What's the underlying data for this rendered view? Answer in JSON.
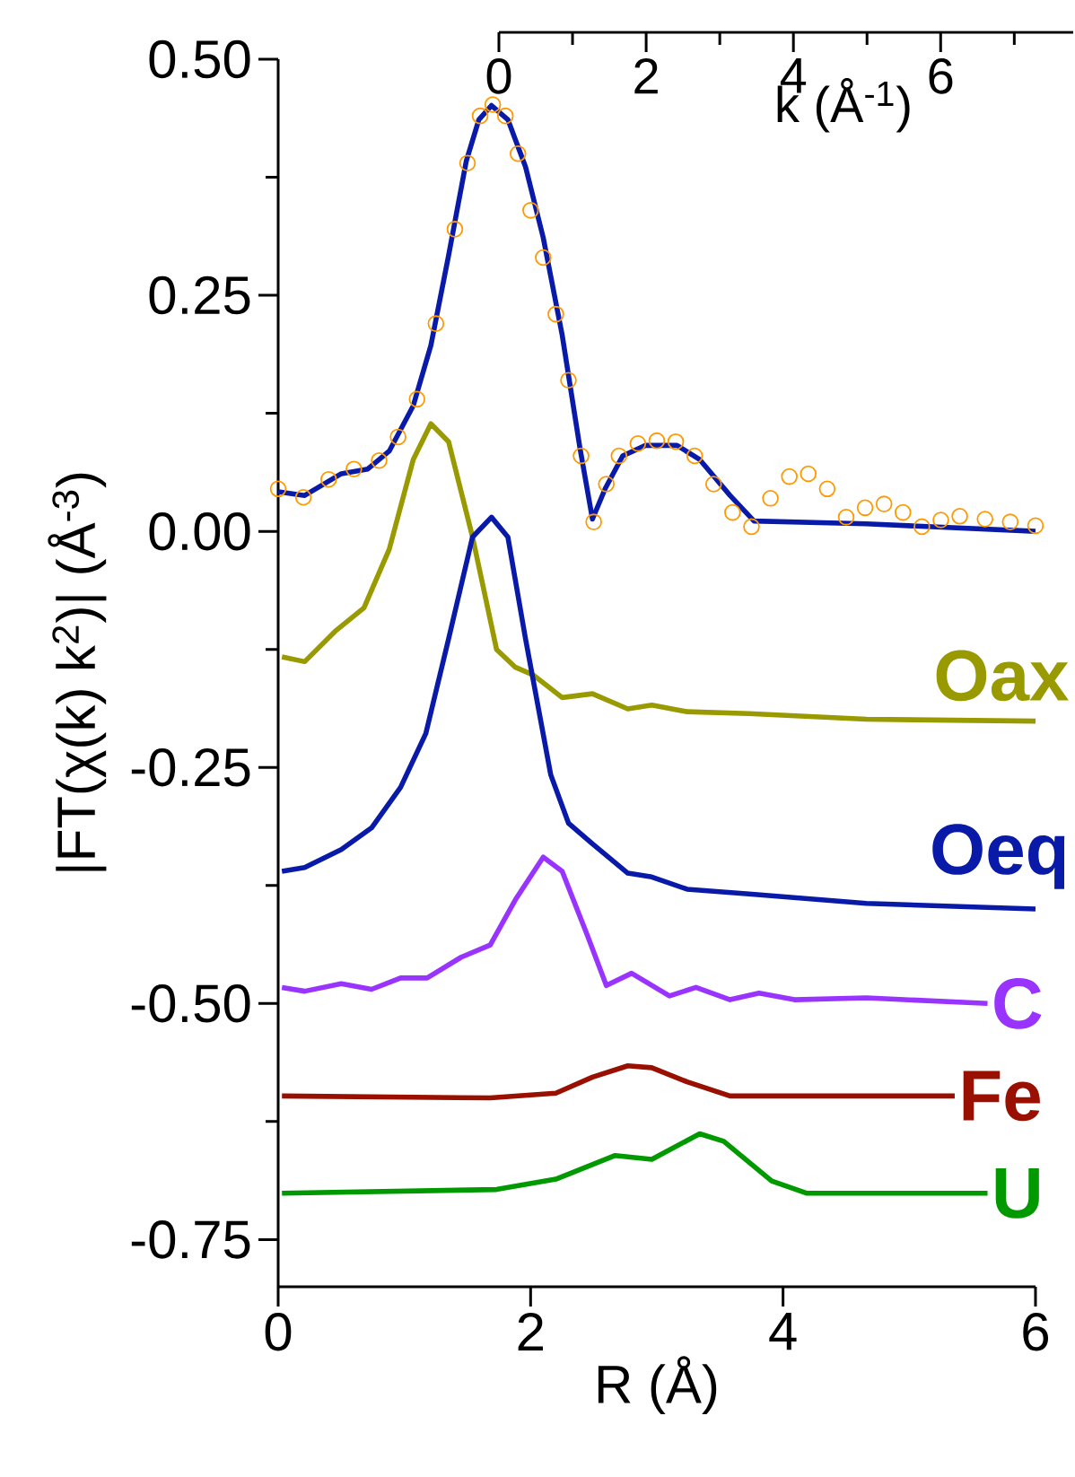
{
  "chart_data": {
    "type": "line",
    "xlabel": "R (Å)",
    "ylabel": "|FT(χ(k) k$^{2}$)| (Å$^{-3}$)",
    "x2label": "k (Å$^{-1}$)",
    "xlim": [
      0,
      6
    ],
    "xticks": [
      0,
      2,
      4,
      6
    ],
    "ylim": [
      -0.8,
      0.5
    ],
    "yticks": [
      {
        "value": 0.5,
        "label": "0.50"
      },
      {
        "value": 0.375,
        "label": null
      },
      {
        "value": 0.25,
        "label": "0.25"
      },
      {
        "value": 0.125,
        "label": null
      },
      {
        "value": 0,
        "label": "0.00"
      },
      {
        "value": -0.125,
        "label": null
      },
      {
        "value": -0.25,
        "label": "-0.25"
      },
      {
        "value": -0.375,
        "label": null
      },
      {
        "value": -0.5,
        "label": "-0.50"
      },
      {
        "value": -0.625,
        "label": null
      },
      {
        "value": -0.75,
        "label": "-0.75"
      }
    ],
    "x2lim": [
      0,
      7.8
    ],
    "x2ticks": [
      0,
      {
        "value": 1,
        "label": null
      },
      2,
      {
        "value": 3,
        "label": null
      },
      4,
      {
        "value": 5,
        "label": null
      },
      6,
      {
        "value": 7,
        "label": null
      }
    ],
    "series": [
      {
        "type": "scatter",
        "marker": "circle",
        "color": "#ff9900",
        "x": [
          0,
          0.2,
          0.4,
          0.6,
          0.8,
          0.95,
          1.1,
          1.25,
          1.4,
          1.5,
          1.6,
          1.7,
          1.8,
          1.9,
          2.0,
          2.1,
          2.2,
          2.3,
          2.4,
          2.5,
          2.6,
          2.7,
          2.85,
          3.0,
          3.15,
          3.3,
          3.45,
          3.6,
          3.75,
          3.9,
          4.05,
          4.2,
          4.35,
          4.5,
          4.65,
          4.8,
          4.95,
          5.1,
          5.25,
          5.4,
          5.6,
          5.8,
          6.0
        ],
        "values": [
          0.045,
          0.036,
          0.055,
          0.066,
          0.075,
          0.1,
          0.14,
          0.22,
          0.32,
          0.39,
          0.44,
          0.452,
          0.44,
          0.4,
          0.34,
          0.29,
          0.23,
          0.16,
          0.08,
          0.01,
          0.05,
          0.08,
          0.093,
          0.096,
          0.095,
          0.08,
          0.05,
          0.02,
          0.005,
          0.035,
          0.058,
          0.061,
          0.045,
          0.015,
          0.025,
          0.029,
          0.02,
          0.005,
          0.012,
          0.016,
          0.013,
          0.01,
          0.006
        ]
      },
      {
        "color": "#0a1aa8",
        "x": [
          0,
          0.21,
          0.5,
          0.71,
          0.88,
          1.07,
          1.21,
          1.35,
          1.49,
          1.59,
          1.69,
          1.82,
          1.96,
          2.1,
          2.25,
          2.39,
          2.49,
          2.59,
          2.73,
          2.91,
          3.16,
          3.34,
          3.58,
          3.77,
          4.66,
          6.0
        ],
        "values": [
          0.042,
          0.038,
          0.061,
          0.066,
          0.085,
          0.133,
          0.197,
          0.292,
          0.392,
          0.436,
          0.451,
          0.436,
          0.386,
          0.311,
          0.208,
          0.089,
          0.013,
          0.045,
          0.08,
          0.091,
          0.091,
          0.076,
          0.038,
          0.011,
          0.008,
          0.0
        ]
      },
      {
        "name": "Oax",
        "color": "#999900",
        "x": [
          0.03,
          0.21,
          0.45,
          0.68,
          0.88,
          1.07,
          1.21,
          1.35,
          1.54,
          1.73,
          1.88,
          2.02,
          2.25,
          2.49,
          2.77,
          2.96,
          3.24,
          3.73,
          4.66,
          6.0
        ],
        "values": [
          -0.133,
          -0.138,
          -0.106,
          -0.081,
          -0.019,
          0.076,
          0.114,
          0.095,
          -0.006,
          -0.125,
          -0.144,
          -0.152,
          -0.176,
          -0.172,
          -0.188,
          -0.184,
          -0.191,
          -0.193,
          -0.199,
          -0.201
        ]
      },
      {
        "name": "Oeq",
        "color": "#0a1aa8",
        "x": [
          0.03,
          0.21,
          0.5,
          0.74,
          0.97,
          1.17,
          1.35,
          1.54,
          1.69,
          1.82,
          1.96,
          2.16,
          2.3,
          2.49,
          2.77,
          2.96,
          3.24,
          3.73,
          4.66,
          6.0
        ],
        "values": [
          -0.36,
          -0.356,
          -0.337,
          -0.314,
          -0.271,
          -0.214,
          -0.114,
          -0.006,
          0.015,
          -0.006,
          -0.114,
          -0.258,
          -0.309,
          -0.331,
          -0.362,
          -0.366,
          -0.379,
          -0.384,
          -0.394,
          -0.4
        ]
      },
      {
        "name": "C",
        "color": "#9933ff",
        "x": [
          0.03,
          0.21,
          0.5,
          0.74,
          0.97,
          1.18,
          1.45,
          1.68,
          1.88,
          2.1,
          2.25,
          2.45,
          2.6,
          2.8,
          3.1,
          3.31,
          3.58,
          3.81,
          4.09,
          4.66,
          5.62
        ],
        "values": [
          -0.483,
          -0.487,
          -0.479,
          -0.485,
          -0.473,
          -0.473,
          -0.451,
          -0.438,
          -0.39,
          -0.345,
          -0.36,
          -0.428,
          -0.481,
          -0.468,
          -0.492,
          -0.483,
          -0.496,
          -0.489,
          -0.496,
          -0.494,
          -0.5
        ]
      },
      {
        "name": "Fe",
        "color": "#990f00",
        "x": [
          0.03,
          1.68,
          2.2,
          2.49,
          2.77,
          2.96,
          3.24,
          3.58,
          4.19,
          5.36
        ],
        "values": [
          -0.598,
          -0.6,
          -0.595,
          -0.578,
          -0.566,
          -0.568,
          -0.583,
          -0.598,
          -0.598,
          -0.598
        ]
      },
      {
        "name": "U",
        "color": "#009900",
        "x": [
          0.03,
          1.73,
          2.2,
          2.67,
          2.96,
          3.34,
          3.53,
          3.91,
          4.19,
          5.62
        ],
        "values": [
          -0.701,
          -0.697,
          -0.686,
          -0.661,
          -0.665,
          -0.638,
          -0.646,
          -0.688,
          -0.701,
          -0.701
        ]
      }
    ]
  }
}
